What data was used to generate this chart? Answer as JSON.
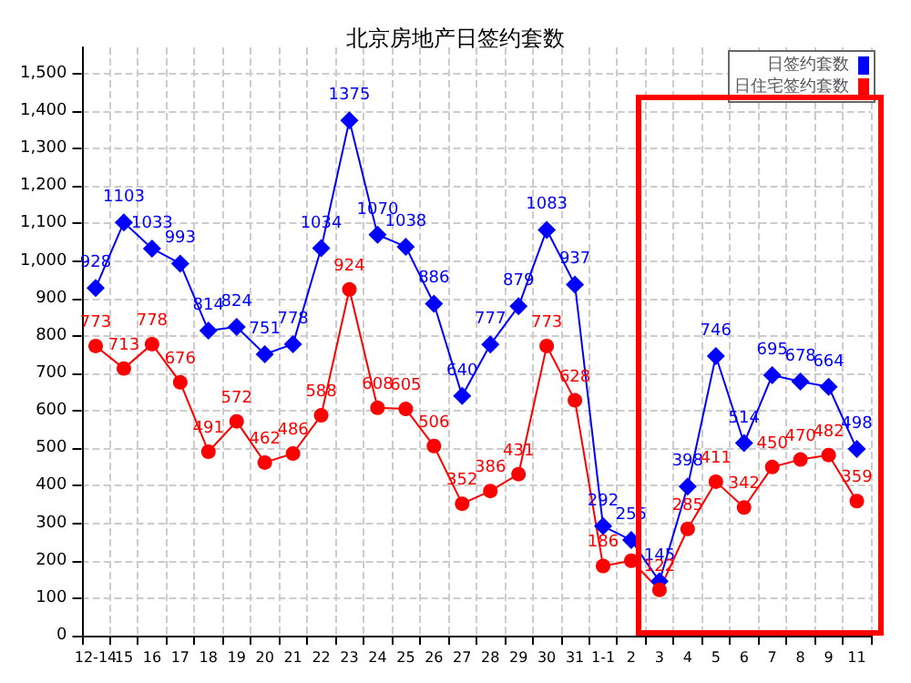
{
  "chart_data": {
    "type": "line",
    "title": "北京房地产日签约套数",
    "categories": [
      "12-14",
      "15",
      "16",
      "17",
      "18",
      "19",
      "20",
      "21",
      "22",
      "23",
      "24",
      "25",
      "26",
      "27",
      "28",
      "29",
      "30",
      "31",
      "1-1",
      "2",
      "3",
      "4",
      "5",
      "6",
      "7",
      "8",
      "9",
      "11"
    ],
    "series": [
      {
        "name": "日签约套数",
        "color": "#0000ff",
        "marker": "diamond",
        "values": [
          928,
          1103,
          1033,
          993,
          814,
          824,
          751,
          778,
          1034,
          1375,
          1070,
          1038,
          886,
          640,
          777,
          879,
          1083,
          937,
          292,
          255,
          145,
          398,
          746,
          514,
          695,
          678,
          664,
          498
        ],
        "value_labels": [
          "928",
          "1103",
          "1033",
          "993",
          "814",
          "824",
          "751",
          "778",
          "1034",
          "1375",
          "1070",
          "1038",
          "886",
          "640",
          "777",
          "879",
          "1083",
          "937",
          "292",
          "255",
          "145",
          "398",
          "746",
          "514",
          "695",
          "678",
          "664",
          "498"
        ]
      },
      {
        "name": "日住宅签约套数",
        "color": "#ff0000",
        "marker": "circle",
        "values": [
          773,
          713,
          778,
          676,
          491,
          572,
          462,
          486,
          588,
          924,
          608,
          605,
          506,
          352,
          386,
          431,
          773,
          628,
          186,
          200,
          122,
          285,
          411,
          342,
          450,
          470,
          482,
          359
        ],
        "value_labels": [
          "773",
          "713",
          "778",
          "676",
          "491",
          "572",
          "462",
          "486",
          "588",
          "924",
          "608",
          "605",
          "506",
          "352",
          "386",
          "431",
          "773",
          "628",
          "186",
          null,
          "122",
          "285",
          "411",
          "342",
          "450",
          "470",
          "482",
          "359"
        ]
      }
    ],
    "ylim": [
      0,
      1570
    ],
    "yticks": [
      0,
      100,
      200,
      300,
      400,
      500,
      600,
      700,
      800,
      900,
      {
        "value": 1000,
        "label": "1,000"
      },
      {
        "value": 1100,
        "label": "1,100"
      },
      {
        "value": 1200,
        "label": "1,200"
      },
      {
        "value": 1300,
        "label": "1,300"
      },
      {
        "value": 1400,
        "label": "1,400"
      },
      {
        "value": 1500,
        "label": "1,500"
      }
    ],
    "grid": true,
    "legend": "top right"
  }
}
